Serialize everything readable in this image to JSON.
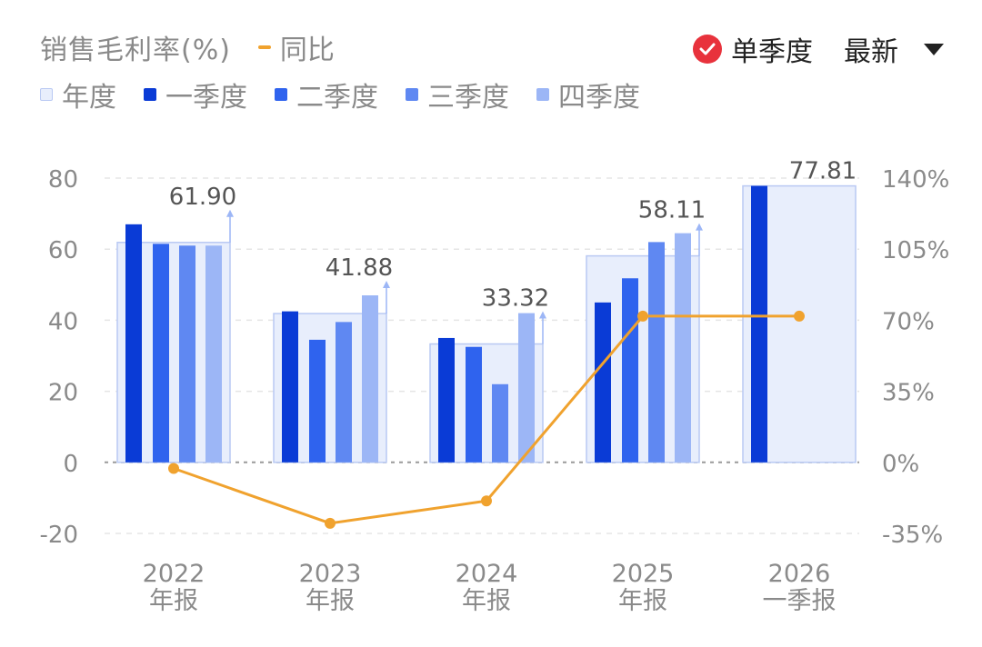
{
  "header": {
    "title": "销售毛利率(%)",
    "yoy_label": "同比",
    "single_quarter_label": "单季度",
    "latest_label": "最新"
  },
  "legend": [
    {
      "label": "年度",
      "color": "#e8eefc"
    },
    {
      "label": "一季度",
      "color": "#0a3bd6"
    },
    {
      "label": "二季度",
      "color": "#2f63ee"
    },
    {
      "label": "三季度",
      "color": "#5f88f2"
    },
    {
      "label": "四季度",
      "color": "#9cb6f6"
    }
  ],
  "colors": {
    "annual_fill": "#e8eefc",
    "annual_border": "#b9c9f3",
    "yoy_line": "#f0a22e",
    "grid": "#e5e5e5",
    "zero_line": "#9a9a9a",
    "tick_text": "#8a8a8a",
    "check_red": "#e8323c"
  },
  "chart_data": {
    "type": "bar",
    "categories": [
      {
        "year": "2022",
        "period": "年报"
      },
      {
        "year": "2023",
        "period": "年报"
      },
      {
        "year": "2024",
        "period": "年报"
      },
      {
        "year": "2025",
        "period": "年报"
      },
      {
        "year": "2026",
        "period": "一季报"
      }
    ],
    "annual": [
      61.9,
      41.88,
      33.32,
      58.11,
      77.81
    ],
    "annual_labels": [
      "61.90",
      "41.88",
      "33.32",
      "58.11",
      "77.81"
    ],
    "series": [
      {
        "name": "一季度",
        "values": [
          67.0,
          42.5,
          35.0,
          45.0,
          77.81
        ]
      },
      {
        "name": "二季度",
        "values": [
          61.5,
          34.5,
          32.5,
          51.8,
          null
        ]
      },
      {
        "name": "三季度",
        "values": [
          61.0,
          39.5,
          22.0,
          62.0,
          null
        ]
      },
      {
        "name": "四季度",
        "values": [
          61.0,
          47.0,
          42.0,
          64.5,
          null
        ]
      }
    ],
    "yoy": {
      "name": "同比",
      "values": [
        -3,
        -30,
        -19,
        72,
        72
      ]
    },
    "left_axis": {
      "ylim": [
        -20,
        80
      ],
      "ticks": [
        "80",
        "60",
        "40",
        "20",
        "0",
        "-20"
      ]
    },
    "right_axis": {
      "ylim": [
        -35,
        140
      ],
      "ticks": [
        "140%",
        "105%",
        "70%",
        "35%",
        "0%",
        "-35%"
      ]
    },
    "grid": true
  }
}
